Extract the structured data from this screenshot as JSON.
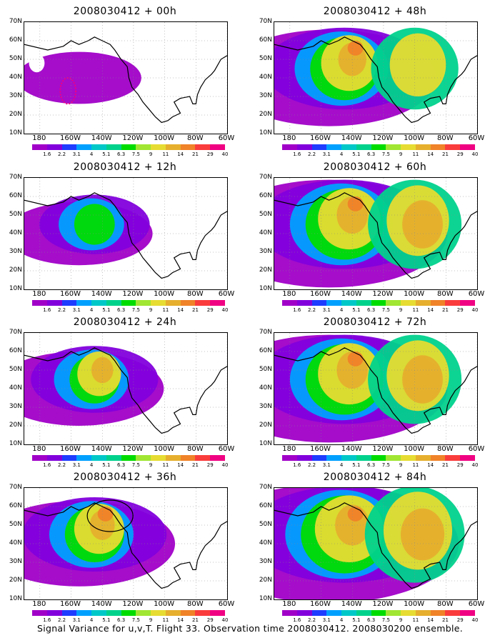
{
  "panels": [
    {
      "title": "2008030412 + 00h",
      "level": 0
    },
    {
      "title": "2008030412 + 48h",
      "level": 4
    },
    {
      "title": "2008030412 + 12h",
      "level": 1
    },
    {
      "title": "2008030412 + 60h",
      "level": 5
    },
    {
      "title": "2008030412 + 24h",
      "level": 2
    },
    {
      "title": "2008030412 + 72h",
      "level": 5
    },
    {
      "title": "2008030412 + 36h",
      "level": 3
    },
    {
      "title": "2008030412 + 84h",
      "level": 6
    }
  ],
  "y_axis_labels": [
    "70N",
    "60N",
    "50N",
    "40N",
    "30N",
    "20N",
    "10N"
  ],
  "x_axis_labels": [
    "180",
    "160W",
    "140W",
    "120W",
    "100W",
    "80W",
    "60W"
  ],
  "colorbar": {
    "labels": [
      "1.6",
      "2.2",
      "3.1",
      "4",
      "5.1",
      "6.3",
      "7.5",
      "9",
      "11",
      "14",
      "21",
      "29",
      "40"
    ],
    "colors": [
      "#a000c8",
      "#8200dc",
      "#1e3cff",
      "#00a0ff",
      "#00c8c8",
      "#00d28c",
      "#00dc00",
      "#a0e632",
      "#e6dc32",
      "#e6af2d",
      "#f08228",
      "#fa3c3c",
      "#f00082"
    ]
  },
  "caption": "Signal Variance for u,v,T. Flight 33. Observation time 2008030412. 2008030200 ensemble."
}
